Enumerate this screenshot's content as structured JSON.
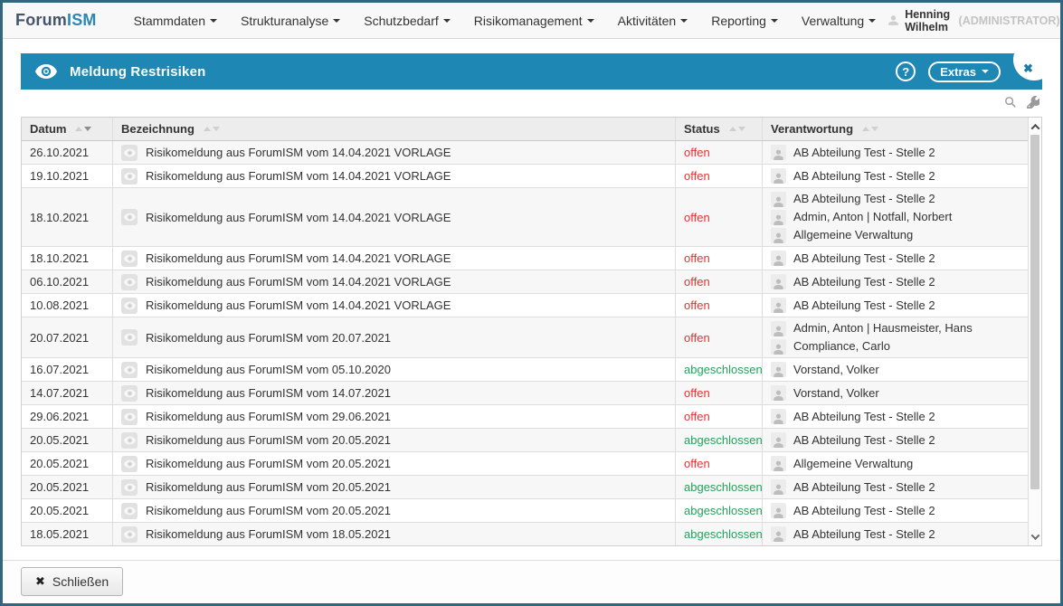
{
  "navbar": {
    "logo_part1": "Forum",
    "logo_part2": "ISM",
    "items": [
      {
        "label": "Stammdaten"
      },
      {
        "label": "Strukturanalyse"
      },
      {
        "label": "Schutzbedarf"
      },
      {
        "label": "Risikomanagement"
      },
      {
        "label": "Aktivitäten"
      },
      {
        "label": "Reporting"
      },
      {
        "label": "Verwaltung"
      }
    ],
    "user_name": "Henning Wilhelm",
    "user_role": "(ADMINISTRATOR)"
  },
  "panel": {
    "title": "Meldung Restrisiken",
    "help_label": "?",
    "extras_label": "Extras",
    "close_glyph": "✖"
  },
  "icons": {
    "panel": "eye-icon",
    "tools": [
      "search-icon",
      "wrench-icon"
    ],
    "row": "document-eye-icon",
    "responsible": "person-icon",
    "user": "person-icon",
    "navbar_search": "search-icon"
  },
  "colors": {
    "accent": "#1e87b4",
    "status_open": "#e23333",
    "status_closed": "#28a05c",
    "frame_border": "#33657f"
  },
  "table": {
    "columns": [
      {
        "label": "Datum",
        "sort": "desc"
      },
      {
        "label": "Bezeichnung",
        "sort": "none"
      },
      {
        "label": "Status",
        "sort": "none"
      },
      {
        "label": "Verantwortung",
        "sort": "none"
      }
    ],
    "rows": [
      {
        "date": "26.10.2021",
        "name": "Risikomeldung aus ForumISM vom 14.04.2021 VORLAGE",
        "status": "offen",
        "status_type": "open",
        "responsible": [
          "AB Abteilung Test - Stelle 2"
        ]
      },
      {
        "date": "19.10.2021",
        "name": "Risikomeldung aus ForumISM vom 14.04.2021 VORLAGE",
        "status": "offen",
        "status_type": "open",
        "responsible": [
          "AB Abteilung Test - Stelle 2"
        ]
      },
      {
        "date": "18.10.2021",
        "name": "Risikomeldung aus ForumISM vom 14.04.2021 VORLAGE",
        "status": "offen",
        "status_type": "open",
        "responsible": [
          "AB Abteilung Test - Stelle 2",
          "Admin, Anton | Notfall, Norbert",
          "Allgemeine Verwaltung"
        ]
      },
      {
        "date": "18.10.2021",
        "name": "Risikomeldung aus ForumISM vom 14.04.2021 VORLAGE",
        "status": "offen",
        "status_type": "open",
        "responsible": [
          "AB Abteilung Test - Stelle 2"
        ]
      },
      {
        "date": "06.10.2021",
        "name": "Risikomeldung aus ForumISM vom 14.04.2021 VORLAGE",
        "status": "offen",
        "status_type": "open",
        "responsible": [
          "AB Abteilung Test - Stelle 2"
        ]
      },
      {
        "date": "10.08.2021",
        "name": "Risikomeldung aus ForumISM vom 14.04.2021 VORLAGE",
        "status": "offen",
        "status_type": "open",
        "responsible": [
          "AB Abteilung Test - Stelle 2"
        ]
      },
      {
        "date": "20.07.2021",
        "name": "Risikomeldung aus ForumISM vom 20.07.2021",
        "status": "offen",
        "status_type": "open",
        "responsible": [
          "Admin, Anton | Hausmeister, Hans",
          "Compliance, Carlo"
        ]
      },
      {
        "date": "16.07.2021",
        "name": "Risikomeldung aus ForumISM vom 05.10.2020",
        "status": "abgeschlossen",
        "status_type": "closed",
        "responsible": [
          "Vorstand, Volker"
        ]
      },
      {
        "date": "14.07.2021",
        "name": "Risikomeldung aus ForumISM vom 14.07.2021",
        "status": "offen",
        "status_type": "open",
        "responsible": [
          "Vorstand, Volker"
        ]
      },
      {
        "date": "29.06.2021",
        "name": "Risikomeldung aus ForumISM vom 29.06.2021",
        "status": "offen",
        "status_type": "open",
        "responsible": [
          "AB Abteilung Test - Stelle 2"
        ]
      },
      {
        "date": "20.05.2021",
        "name": "Risikomeldung aus ForumISM vom 20.05.2021",
        "status": "abgeschlossen",
        "status_type": "closed",
        "responsible": [
          "AB Abteilung Test - Stelle 2"
        ]
      },
      {
        "date": "20.05.2021",
        "name": "Risikomeldung aus ForumISM vom 20.05.2021",
        "status": "offen",
        "status_type": "open",
        "responsible": [
          "Allgemeine Verwaltung"
        ]
      },
      {
        "date": "20.05.2021",
        "name": "Risikomeldung aus ForumISM vom 20.05.2021",
        "status": "abgeschlossen",
        "status_type": "closed",
        "responsible": [
          "AB Abteilung Test - Stelle 2"
        ]
      },
      {
        "date": "20.05.2021",
        "name": "Risikomeldung aus ForumISM vom 20.05.2021",
        "status": "abgeschlossen",
        "status_type": "closed",
        "responsible": [
          "AB Abteilung Test - Stelle 2"
        ]
      },
      {
        "date": "18.05.2021",
        "name": "Risikomeldung aus ForumISM vom 18.05.2021",
        "status": "abgeschlossen",
        "status_type": "closed",
        "responsible": [
          "AB Abteilung Test - Stelle 2"
        ]
      }
    ]
  },
  "footer": {
    "close_label": "Schließen",
    "close_glyph": "✖"
  }
}
